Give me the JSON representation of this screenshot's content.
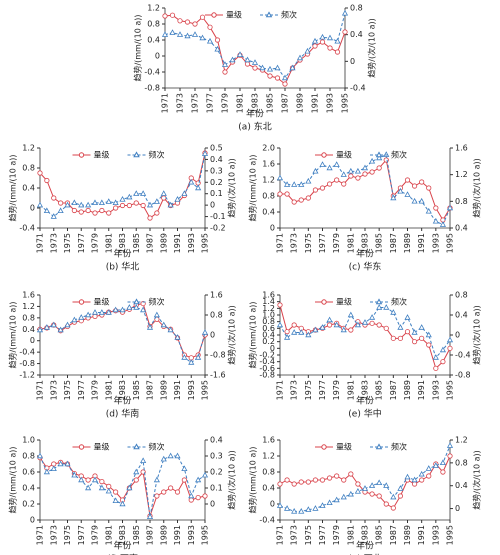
{
  "chart_data": [
    {
      "type": "line",
      "title": "(a) 东北",
      "xlabel": "年份",
      "ylabel": "趋势/(mm/(10 a))",
      "y2label": "趋势/(次/(10 a))",
      "x": [
        1971,
        1972,
        1973,
        1974,
        1975,
        1976,
        1977,
        1978,
        1979,
        1980,
        1981,
        1982,
        1983,
        1984,
        1985,
        1986,
        1987,
        1988,
        1989,
        1990,
        1991,
        1992,
        1993,
        1994,
        1995
      ],
      "xlim": [
        1971,
        1995
      ],
      "xticks": [
        1971,
        1973,
        1975,
        1977,
        1979,
        1981,
        1983,
        1985,
        1987,
        1989,
        1991,
        1993,
        1995
      ],
      "ylim": [
        -0.8,
        1.2
      ],
      "yticks": [
        -0.8,
        -0.4,
        0,
        0.4,
        0.8,
        1.2
      ],
      "y2lim": [
        -0.4,
        0.8
      ],
      "y2ticks": [
        -0.4,
        0,
        0.4,
        0.8
      ],
      "series": [
        {
          "name": "量级",
          "color": "#d9434b",
          "values": [
            1.0,
            1.02,
            0.88,
            0.85,
            0.8,
            0.97,
            0.72,
            0.4,
            -0.4,
            -0.15,
            0.02,
            -0.2,
            -0.3,
            -0.35,
            -0.5,
            -0.55,
            -0.7,
            -0.3,
            -0.1,
            0.05,
            0.25,
            0.35,
            0.2,
            0.1,
            0.6
          ]
        },
        {
          "name": "频次",
          "color": "#3f7fc1",
          "axis": "y2",
          "values": [
            0.4,
            0.43,
            0.4,
            0.38,
            0.4,
            0.35,
            0.3,
            0.18,
            -0.05,
            0.02,
            0.1,
            0.02,
            -0.02,
            -0.1,
            -0.12,
            -0.1,
            -0.25,
            -0.1,
            0.05,
            0.15,
            0.3,
            0.36,
            0.35,
            0.3,
            0.72
          ]
        }
      ]
    },
    {
      "type": "line",
      "title": "(b) 华北",
      "xlabel": "年份",
      "ylabel": "趋势/(mm/(10 a))",
      "y2label": "趋势/(次/(10 a))",
      "x": [
        1971,
        1972,
        1973,
        1974,
        1975,
        1976,
        1977,
        1978,
        1979,
        1980,
        1981,
        1982,
        1983,
        1984,
        1985,
        1986,
        1987,
        1988,
        1989,
        1990,
        1991,
        1992,
        1993,
        1994,
        1995
      ],
      "xlim": [
        1971,
        1995
      ],
      "xticks": [
        1971,
        1973,
        1975,
        1977,
        1979,
        1981,
        1983,
        1985,
        1987,
        1989,
        1991,
        1993,
        1995
      ],
      "ylim": [
        -0.4,
        1.2
      ],
      "yticks": [
        -0.4,
        0,
        0.4,
        0.8,
        1.2
      ],
      "y2lim": [
        -0.2,
        0.5
      ],
      "y2ticks": [
        -0.2,
        -0.1,
        0,
        0.1,
        0.2,
        0.3,
        0.4,
        0.5
      ],
      "series": [
        {
          "name": "量级",
          "color": "#d9434b",
          "values": [
            0.7,
            0.55,
            0.2,
            0.1,
            0.1,
            -0.05,
            -0.08,
            -0.05,
            -0.1,
            -0.05,
            -0.1,
            0,
            0.05,
            0.05,
            0.1,
            0.05,
            -0.2,
            -0.1,
            0.2,
            0.05,
            0.1,
            0.25,
            0.6,
            0.5,
            1.1
          ]
        },
        {
          "name": "频次",
          "color": "#3f7fc1",
          "axis": "y2",
          "values": [
            0,
            -0.05,
            -0.1,
            -0.05,
            0,
            0.02,
            0,
            0,
            0.02,
            0.02,
            0.03,
            0.02,
            0.05,
            0.07,
            0.1,
            0.1,
            0,
            0.03,
            0.1,
            0,
            0.05,
            0.1,
            0.2,
            0.15,
            0.45
          ]
        }
      ]
    },
    {
      "type": "line",
      "title": "(c) 华东",
      "xlabel": "年份",
      "ylabel": "趋势/(mm/(10 a))",
      "y2label": "趋势/(次/(10 a))",
      "x": [
        1971,
        1972,
        1973,
        1974,
        1975,
        1976,
        1977,
        1978,
        1979,
        1980,
        1981,
        1982,
        1983,
        1984,
        1985,
        1986,
        1987,
        1988,
        1989,
        1990,
        1991,
        1992,
        1993,
        1994,
        1995
      ],
      "xlim": [
        1971,
        1995
      ],
      "xticks": [
        1971,
        1973,
        1975,
        1977,
        1979,
        1981,
        1983,
        1985,
        1987,
        1989,
        1991,
        1993,
        1995
      ],
      "ylim": [
        0,
        2.0
      ],
      "yticks": [
        0,
        0.4,
        0.8,
        1.2,
        1.6,
        {
          "value": 2,
          "label": "2.0"
        }
      ],
      "y2lim": [
        0.4,
        1.6
      ],
      "y2ticks": [
        0.4,
        0.8,
        1.2,
        1.6
      ],
      "series": [
        {
          "name": "量级",
          "color": "#d9434b",
          "values": [
            0.85,
            0.85,
            0.65,
            0.7,
            0.75,
            0.95,
            1.0,
            1.1,
            1.2,
            1.1,
            1.3,
            1.25,
            1.35,
            1.4,
            1.5,
            1.7,
            0.8,
            1.0,
            1.2,
            1.05,
            1.15,
            1.0,
            0.5,
            0.2,
            0.5
          ]
        },
        {
          "name": "频次",
          "color": "#3f7fc1",
          "axis": "y2",
          "values": [
            1.15,
            1.05,
            1.05,
            1.05,
            1.1,
            1.25,
            1.35,
            1.3,
            1.35,
            1.2,
            1.25,
            1.25,
            1.3,
            1.4,
            1.45,
            1.5,
            0.85,
            0.95,
            0.9,
            0.8,
            0.8,
            0.65,
            0.5,
            0.45,
            0.7
          ]
        }
      ]
    },
    {
      "type": "line",
      "title": "(d) 华南",
      "xlabel": "年份",
      "ylabel": "趋势/(mm/(10 a))",
      "y2label": "趋势/(次/(10 a))",
      "x": [
        1971,
        1972,
        1973,
        1974,
        1975,
        1976,
        1977,
        1978,
        1979,
        1980,
        1981,
        1982,
        1983,
        1984,
        1985,
        1986,
        1987,
        1988,
        1989,
        1990,
        1991,
        1992,
        1993,
        1994,
        1995
      ],
      "xlim": [
        1971,
        1995
      ],
      "xticks": [
        1971,
        1973,
        1975,
        1977,
        1979,
        1981,
        1983,
        1985,
        1987,
        1989,
        1991,
        1993,
        1995
      ],
      "ylim": [
        -1.2,
        1.6
      ],
      "yticks": [
        -1.2,
        -0.8,
        -0.4,
        0,
        0.4,
        0.8,
        1.2,
        1.6
      ],
      "y2lim": [
        -1.6,
        1.6
      ],
      "y2ticks": [
        -1.6,
        -0.8,
        0,
        0.8,
        1.6
      ],
      "series": [
        {
          "name": "量级",
          "color": "#d9434b",
          "values": [
            0.4,
            0.45,
            0.55,
            0.35,
            0.5,
            0.65,
            0.7,
            0.8,
            0.85,
            0.9,
            1.0,
            1.05,
            1.0,
            1.1,
            1.25,
            1.3,
            0.5,
            0.75,
            0.5,
            0.4,
            0.1,
            -0.5,
            -0.6,
            -0.5,
            0.2
          ]
        },
        {
          "name": "频次",
          "color": "#3f7fc1",
          "axis": "y2",
          "values": [
            0.2,
            0.3,
            0.4,
            0.2,
            0.4,
            0.6,
            0.7,
            0.8,
            0.9,
            0.9,
            0.9,
            1.0,
            1.0,
            1.1,
            1.1,
            1.0,
            0.3,
            0.8,
            0.4,
            0.2,
            -0.1,
            -0.9,
            -1.1,
            -0.9,
            0.1
          ]
        }
      ]
    },
    {
      "type": "line",
      "title": "(e) 华中",
      "xlabel": "年份",
      "ylabel": "趋势/(mm/(10 a))",
      "y2label": "趋势/(次/(10 a))",
      "x": [
        1971,
        1972,
        1973,
        1974,
        1975,
        1976,
        1977,
        1978,
        1979,
        1980,
        1981,
        1982,
        1983,
        1984,
        1985,
        1986,
        1987,
        1988,
        1989,
        1990,
        1991,
        1992,
        1993,
        1994,
        1995
      ],
      "xlim": [
        1971,
        1995
      ],
      "xticks": [
        1971,
        1973,
        1975,
        1977,
        1979,
        1981,
        1983,
        1985,
        1987,
        1989,
        1991,
        1993,
        1995
      ],
      "ylim": [
        -0.8,
        1.6
      ],
      "yticks": [
        -0.8,
        -0.6,
        -0.4,
        -0.2,
        0,
        0.2,
        0.4,
        0.6,
        0.8,
        {
          "value": 1,
          "label": "1.0"
        },
        1.2,
        1.4,
        1.6
      ],
      "y2lim": [
        -0.8,
        0.8
      ],
      "y2ticks": [
        -0.8,
        -0.4,
        0,
        0.4,
        0.8
      ],
      "series": [
        {
          "name": "量级",
          "color": "#d9434b",
          "values": [
            1.3,
            0.5,
            0.7,
            0.6,
            0.5,
            0.55,
            0.6,
            0.7,
            0.75,
            0.6,
            0.55,
            0.8,
            0.7,
            0.75,
            0.7,
            0.6,
            0.3,
            0.3,
            0.5,
            0.2,
            0.3,
            0.1,
            -0.6,
            -0.4,
            0
          ]
        },
        {
          "name": "频次",
          "color": "#3f7fc1",
          "axis": "y2",
          "values": [
            0.2,
            -0.05,
            0.05,
            0.05,
            0,
            0.1,
            0.15,
            0.3,
            0.2,
            0.1,
            0.4,
            0.2,
            0.25,
            0.35,
            0.55,
            0.55,
            0.45,
            0.15,
            0.35,
            0.05,
            0.15,
            0,
            -0.45,
            -0.3,
            -0.1
          ]
        }
      ]
    },
    {
      "type": "line",
      "title": "(f) 西南",
      "xlabel": "年份",
      "ylabel": "趋势/(mm/(10 a))",
      "y2label": "趋势/(次/(10 a))",
      "x": [
        1971,
        1972,
        1973,
        1974,
        1975,
        1976,
        1977,
        1978,
        1979,
        1980,
        1981,
        1982,
        1983,
        1984,
        1985,
        1986,
        1987,
        1988,
        1989,
        1990,
        1991,
        1992,
        1993,
        1994,
        1995
      ],
      "xlim": [
        1971,
        1995
      ],
      "xticks": [
        1971,
        1973,
        1975,
        1977,
        1979,
        1981,
        1983,
        1985,
        1987,
        1989,
        1991,
        1993,
        1995
      ],
      "ylim": [
        0,
        1.0
      ],
      "yticks": [
        0,
        0.2,
        0.4,
        0.6,
        0.8,
        {
          "value": 1,
          "label": "1.0"
        }
      ],
      "y2lim": [
        -0.1,
        0.4
      ],
      "y2ticks": [
        0,
        0.1,
        0.2,
        0.3,
        0.4
      ],
      "series": [
        {
          "name": "量级",
          "color": "#d9434b",
          "values": [
            0.78,
            0.65,
            0.7,
            0.72,
            0.7,
            0.58,
            0.55,
            0.5,
            0.55,
            0.48,
            0.42,
            0.35,
            0.25,
            0.4,
            0.5,
            0.6,
            0.05,
            0.3,
            0.35,
            0.4,
            0.35,
            0.5,
            0.25,
            0.28,
            0.3
          ]
        },
        {
          "name": "频次",
          "color": "#3f7fc1",
          "axis": "y2",
          "values": [
            0.3,
            0.2,
            0.22,
            0.25,
            0.25,
            0.18,
            0.15,
            0.1,
            0.15,
            0.1,
            0.08,
            0.02,
            0,
            0.1,
            0.2,
            0.27,
            -0.08,
            0.15,
            0.28,
            0.3,
            0.3,
            0.22,
            0.05,
            0.15,
            0.18
          ]
        }
      ]
    },
    {
      "type": "line",
      "title": "(g) 西北",
      "xlabel": "年份",
      "ylabel": "趋势/(mm/(10 a))",
      "y2label": "趋势/(次/(10 a))",
      "x": [
        1971,
        1972,
        1973,
        1974,
        1975,
        1976,
        1977,
        1978,
        1979,
        1980,
        1981,
        1982,
        1983,
        1984,
        1985,
        1986,
        1987,
        1988,
        1989,
        1990,
        1991,
        1992,
        1993,
        1994,
        1995
      ],
      "xlim": [
        1971,
        1995
      ],
      "xticks": [
        1971,
        1973,
        1975,
        1977,
        1979,
        1981,
        1983,
        1985,
        1987,
        1989,
        1991,
        1993,
        1995
      ],
      "ylim": [
        -0.4,
        1.6
      ],
      "yticks": [
        -0.4,
        0,
        0.4,
        0.8,
        1.2,
        1.6
      ],
      "y2lim": [
        -0.2,
        1.2
      ],
      "y2ticks": [
        0,
        0.4,
        0.8,
        1.2
      ],
      "series": [
        {
          "name": "量级",
          "color": "#d9434b",
          "values": [
            0.5,
            0.6,
            0.5,
            0.55,
            0.55,
            0.6,
            0.6,
            0.65,
            0.7,
            0.6,
            0.75,
            0.5,
            0.3,
            0.25,
            0.2,
            0,
            -0.1,
            0.2,
            0.6,
            0.5,
            0.6,
            0.7,
            1.0,
            0.8,
            1.2
          ]
        },
        {
          "name": "频次",
          "color": "#3f7fc1",
          "axis": "y2",
          "values": [
            0.05,
            0,
            -0.05,
            -0.05,
            -0.02,
            0,
            0.05,
            0.1,
            0.15,
            0.2,
            0.25,
            0.3,
            0.35,
            0.4,
            0.45,
            0.4,
            0.2,
            0.35,
            0.55,
            0.5,
            0.6,
            0.7,
            0.75,
            0.8,
            1.1
          ]
        }
      ]
    }
  ]
}
